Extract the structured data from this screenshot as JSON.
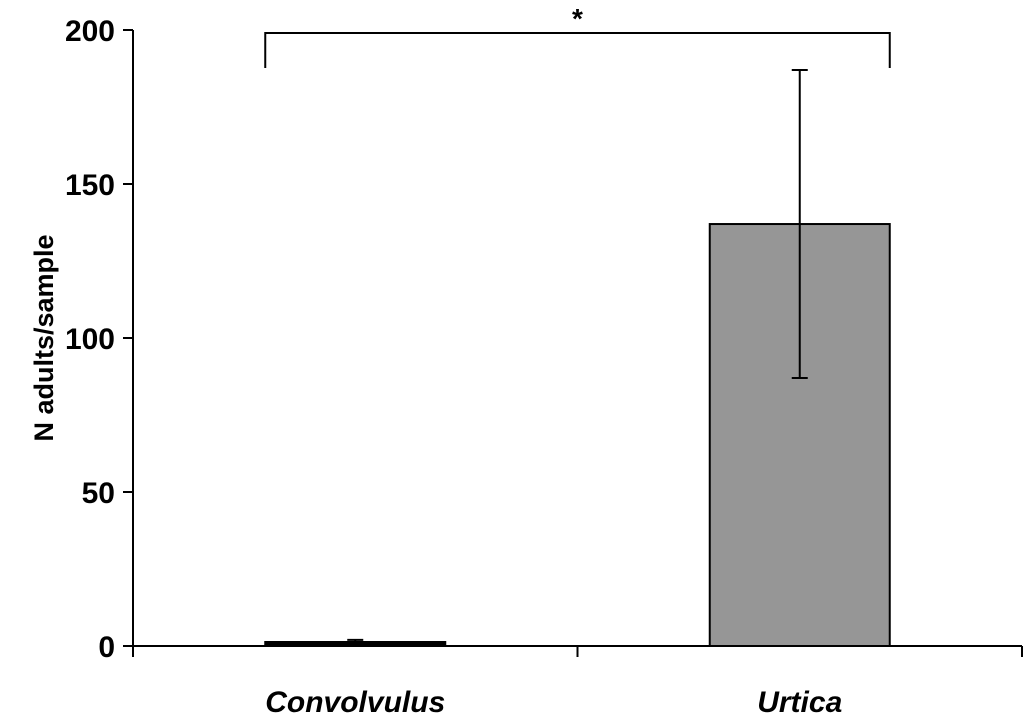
{
  "chart_data": {
    "type": "bar",
    "title": "",
    "xlabel": "",
    "ylabel": "N adults/sample",
    "categories": [
      "Convolvulus",
      "Urtica"
    ],
    "values": [
      1,
      137
    ],
    "error": [
      1,
      50
    ],
    "ylim": [
      0,
      200
    ],
    "yticks": [
      "0",
      "50",
      "100",
      "150",
      "200"
    ],
    "bar_colors": [
      "#000000",
      "#969696"
    ],
    "grid": false,
    "legend": "none",
    "significance": {
      "pair": [
        "Convolvulus",
        "Urtica"
      ],
      "label": "*"
    }
  }
}
